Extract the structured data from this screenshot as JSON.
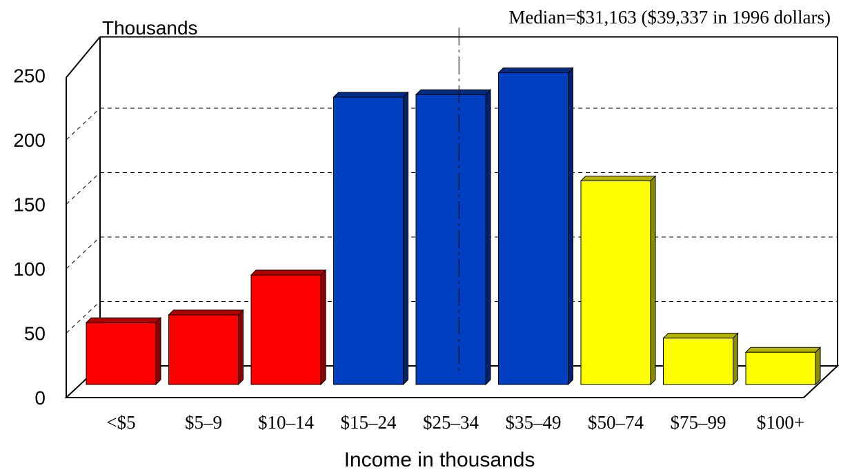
{
  "chart_data": {
    "type": "bar",
    "title": "",
    "ylabel": "Thousands",
    "xlabel": "Income in thousands",
    "categories": [
      "<$5",
      "$5–9",
      "$10–14",
      "$15–24",
      "$25–34",
      "$35–49",
      "$50–74",
      "$75–99",
      "$100+"
    ],
    "values": [
      48,
      54,
      85,
      223,
      225,
      242,
      158,
      36,
      25
    ],
    "bar_colors": [
      "#ff0000",
      "#ff0000",
      "#ff0000",
      "#0040c0",
      "#0040c0",
      "#0040c0",
      "#ffff00",
      "#ffff00",
      "#ffff00"
    ],
    "ylim": [
      0,
      250
    ],
    "yticks": [
      "0",
      "50",
      "100",
      "150",
      "200",
      "250"
    ],
    "grid": true,
    "annotation": "Median=$31,163 ($39,337 in 1996 dollars)",
    "median_value": 31163
  }
}
